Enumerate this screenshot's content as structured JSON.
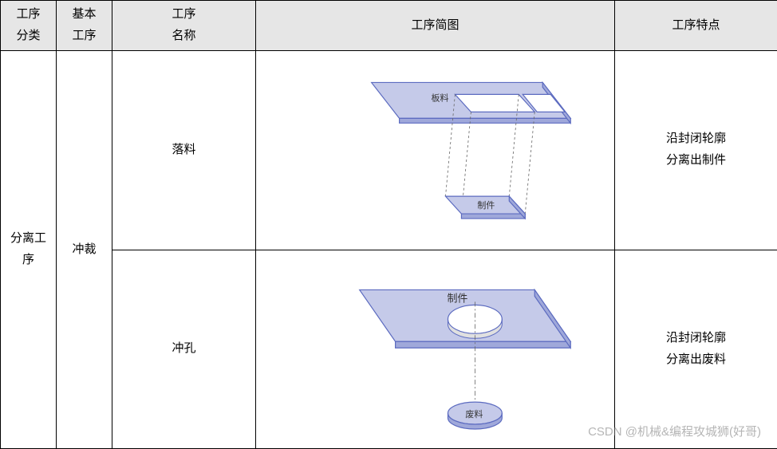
{
  "table": {
    "header": {
      "col0": "工序\n分类",
      "col1": "基本\n工序",
      "col2": "工序\n名称",
      "col3": "工序简图",
      "col4": "工序特点"
    },
    "category": "分离工\n序",
    "basic_process": "冲裁",
    "rows": [
      {
        "name": "落料",
        "feature": "沿封闭轮廓\n分离出制件",
        "diagram": {
          "label_top": "板料",
          "label_bottom": "制件"
        }
      },
      {
        "name": "冲孔",
        "feature": "沿封闭轮廓\n分离出废料",
        "diagram": {
          "label_top": "制件",
          "label_bottom": "废料"
        }
      }
    ]
  },
  "watermark": "CSDN @机械&编程攻城狮(好哥)",
  "style": {
    "header_bg": "#e6e6e6",
    "border_color": "#000000",
    "font_size": 15,
    "shape_fill": "#c5cae9",
    "shape_fill_light": "#d6daf0",
    "shape_stroke": "#5c6bc0",
    "shape_stroke_dark": "#3f4a8a",
    "dash_color": "#666666",
    "label_font_size": 11,
    "background": "#ffffff"
  }
}
